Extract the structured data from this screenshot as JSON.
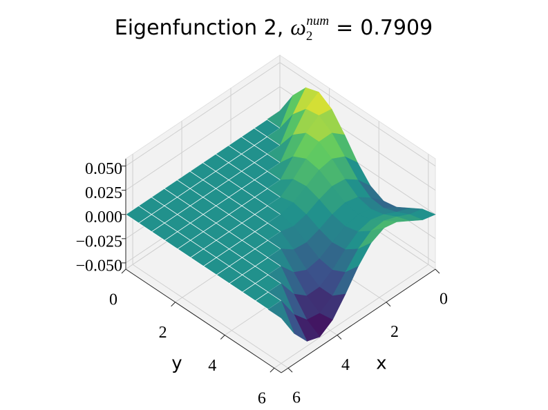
{
  "chart_data": {
    "type": "surface",
    "title": "Eigenfunction 2,",
    "title_symbol": "ω",
    "title_subscript": "2",
    "title_superscript": "num",
    "title_relation": "=",
    "title_value": 0.7909,
    "xlabel": "x",
    "ylabel": "y",
    "colormap": "viridis",
    "grid": true,
    "xlim": [
      0,
      6.2832
    ],
    "ylim": [
      0,
      6.2832
    ],
    "zlim": [
      -0.0565,
      0.0575
    ],
    "xticks": [
      0,
      2,
      4,
      6
    ],
    "yticks": [
      0,
      2,
      4,
      6
    ],
    "zticks": [
      {
        "value": -0.05,
        "label": "−0.050"
      },
      {
        "value": -0.025,
        "label": "−0.025"
      },
      {
        "value": 0,
        "label": "0.000"
      },
      {
        "value": 0.025,
        "label": "0.025"
      },
      {
        "value": 0.05,
        "label": "0.050"
      }
    ],
    "x": [
      0,
      0.5236,
      1.0472,
      1.5708,
      2.0944,
      2.618,
      3.1416,
      3.6652,
      4.1888,
      4.7124,
      5.236,
      5.7596,
      6.2832
    ],
    "y": [
      0,
      0.5236,
      1.0472,
      1.5708,
      2.0944,
      2.618,
      3.1416,
      3.6652,
      4.1888,
      4.7124,
      5.236,
      5.7596,
      6.2832
    ],
    "z": [
      [
        0,
        0,
        0,
        0,
        0,
        0,
        0,
        0,
        0,
        0,
        0,
        0,
        0
      ],
      [
        0.0248,
        0,
        0,
        0,
        0,
        0,
        0,
        0,
        0,
        0,
        0,
        0,
        0
      ],
      [
        0.0418,
        0.0231,
        0,
        0,
        0,
        0,
        0,
        0,
        0,
        0,
        0,
        0,
        0
      ],
      [
        0.0462,
        0.0375,
        0.0198,
        0,
        0,
        0,
        0,
        0,
        0,
        0,
        0,
        0,
        0
      ],
      [
        0.0375,
        0.0397,
        0.0306,
        0.0152,
        0,
        0,
        0,
        0,
        0,
        0,
        0,
        0,
        0
      ],
      [
        0.0198,
        0.0306,
        0.0304,
        0.0217,
        0.0096,
        0,
        0,
        0,
        0,
        0,
        0,
        0,
        0
      ],
      [
        0,
        0.0152,
        0.0217,
        0.0191,
        0.0112,
        0.0033,
        0,
        0,
        0,
        0,
        0,
        0,
        0
      ],
      [
        -0.0152,
        0,
        0.0096,
        0.0112,
        0.0065,
        0,
        -0.0033,
        0,
        0,
        0,
        0,
        0,
        0
      ],
      [
        -0.0217,
        -0.0096,
        0,
        0.0033,
        0,
        -0.0065,
        -0.0112,
        -0.0096,
        0,
        0,
        0,
        0,
        0
      ],
      [
        -0.0191,
        -0.0112,
        -0.0033,
        0,
        -0.0033,
        -0.0112,
        -0.0191,
        -0.0217,
        -0.0152,
        0,
        0,
        0,
        0
      ],
      [
        -0.0112,
        -0.0065,
        0,
        0.0033,
        0,
        -0.0096,
        -0.0217,
        -0.0304,
        -0.0306,
        -0.0198,
        0,
        0,
        0
      ],
      [
        -0.0033,
        0,
        0.0065,
        0.0112,
        0.0096,
        0,
        -0.0152,
        -0.0306,
        -0.0397,
        -0.0375,
        -0.0231,
        0,
        0
      ],
      [
        0,
        0.0033,
        0.0112,
        0.0191,
        0.0217,
        0.0152,
        0,
        -0.0198,
        -0.0375,
        -0.0462,
        -0.0418,
        -0.0248,
        0
      ]
    ]
  }
}
